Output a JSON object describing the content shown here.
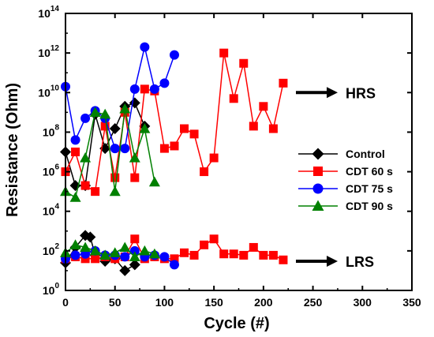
{
  "chart_data": {
    "type": "line",
    "xlabel": "Cycle (#)",
    "ylabel": "Resistance (Ohm)",
    "xlim": [
      0,
      350
    ],
    "ylim": [
      1,
      100000000000000.0
    ],
    "y_scale": "log",
    "x_ticks": [
      0,
      50,
      100,
      150,
      200,
      250,
      300,
      350
    ],
    "x_tick_labels": [
      "0",
      "50",
      "100",
      "150",
      "200",
      "250",
      "300",
      "350"
    ],
    "y_ticks": [
      1,
      100,
      10000,
      1000000,
      100000000,
      10000000000,
      1000000000000,
      100000000000000
    ],
    "y_tick_labels": [
      {
        "base": "10",
        "exp": "0"
      },
      {
        "base": "10",
        "exp": "2"
      },
      {
        "base": "10",
        "exp": "4"
      },
      {
        "base": "10",
        "exp": "6"
      },
      {
        "base": "10",
        "exp": "8"
      },
      {
        "base": "10",
        "exp": "10"
      },
      {
        "base": "10",
        "exp": "12"
      },
      {
        "base": "10",
        "exp": "14"
      }
    ],
    "legend_position": "right",
    "series": [
      {
        "name": "Control",
        "color": "#000000",
        "marker": "diamond",
        "hrs": {
          "x": [
            0,
            10,
            20,
            30,
            40,
            50,
            60,
            70,
            80
          ],
          "y": [
            10000000.0,
            200000.0,
            200000.0,
            800000000.0,
            15000000.0,
            150000000.0,
            2000000000.0,
            3000000000.0,
            200000000.0
          ]
        },
        "lrs": {
          "x": [
            0,
            10,
            20,
            25,
            30,
            40,
            50,
            60,
            70
          ],
          "y": [
            25,
            150,
            600,
            500,
            60,
            30,
            40,
            10,
            20
          ]
        }
      },
      {
        "name": "CDT 60 s",
        "color": "#ff0000",
        "marker": "square",
        "hrs": {
          "x": [
            0,
            10,
            20,
            30,
            40,
            50,
            60,
            70,
            80,
            90,
            100,
            110,
            120,
            130,
            140,
            150,
            160,
            170,
            180,
            190,
            200,
            210,
            220
          ],
          "y": [
            1000000.0,
            10000000.0,
            200000.0,
            100000.0,
            200000000.0,
            500000.0,
            1000000000.0,
            500000.0,
            15000000000.0,
            12000000000.0,
            15000000.0,
            20000000.0,
            150000000.0,
            80000000.0,
            1000000.0,
            5000000.0,
            1000000000000.0,
            5000000000.0,
            300000000000.0,
            200000000.0,
            2000000000.0,
            150000000.0,
            30000000000.0
          ]
        },
        "lrs": {
          "x": [
            0,
            10,
            20,
            30,
            40,
            50,
            60,
            70,
            80,
            90,
            100,
            110,
            120,
            130,
            140,
            150,
            160,
            170,
            180,
            190,
            200,
            210,
            220
          ],
          "y": [
            40,
            50,
            40,
            40,
            50,
            40,
            50,
            400,
            40,
            50,
            40,
            40,
            80,
            60,
            200,
            400,
            70,
            70,
            60,
            150,
            60,
            60,
            35
          ]
        }
      },
      {
        "name": "CDT 75 s",
        "color": "#0000ff",
        "marker": "circle",
        "hrs": {
          "x": [
            0,
            10,
            20,
            30,
            40,
            50,
            60,
            70,
            80,
            90,
            100,
            110
          ],
          "y": [
            20000000000.0,
            40000000.0,
            500000000.0,
            1200000000.0,
            500000000.0,
            15000000.0,
            15000000.0,
            15000000000.0,
            2000000000000.0,
            15000000000.0,
            30000000000.0,
            800000000000.0
          ]
        },
        "lrs": {
          "x": [
            0,
            10,
            20,
            30,
            40,
            50,
            60,
            70,
            80,
            90,
            100,
            110
          ],
          "y": [
            40,
            60,
            70,
            100,
            60,
            60,
            50,
            100,
            50,
            60,
            50,
            20
          ]
        }
      },
      {
        "name": "CDT 90 s",
        "color": "#008000",
        "marker": "triangle",
        "hrs": {
          "x": [
            0,
            10,
            20,
            30,
            40,
            50,
            60,
            70,
            80,
            90
          ],
          "y": [
            100000.0,
            50000.0,
            5000000.0,
            1000000000.0,
            800000000.0,
            100000.0,
            1500000000.0,
            5000000.0,
            150000000.0,
            300000.0
          ]
        },
        "lrs": {
          "x": [
            0,
            10,
            20,
            30,
            40,
            50,
            60,
            70,
            80,
            90
          ],
          "y": [
            80,
            200,
            150,
            100,
            60,
            80,
            150,
            50,
            100,
            70
          ]
        }
      }
    ],
    "annotations": [
      {
        "text": "HRS",
        "x": 230,
        "y": 10000000000.0
      },
      {
        "text": "LRS",
        "x": 230,
        "y": 30
      }
    ]
  }
}
